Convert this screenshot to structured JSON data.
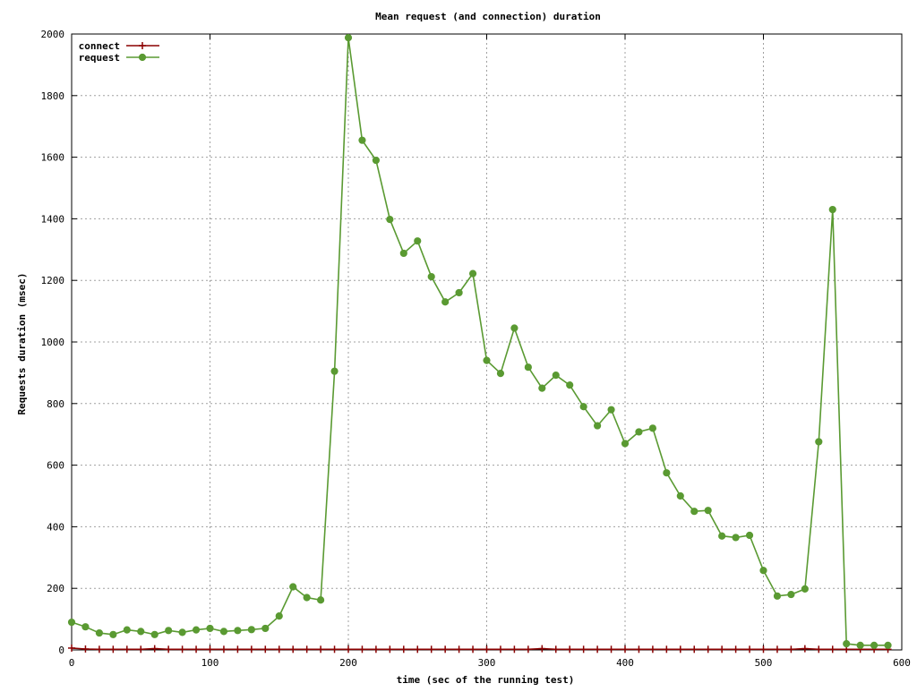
{
  "chart_data": {
    "type": "line",
    "title": "Mean request (and connection) duration",
    "xlabel": "time (sec of the running test)",
    "ylabel": "Requests duration (msec)",
    "xlim": [
      0,
      600
    ],
    "ylim": [
      0,
      2000
    ],
    "xticks": [
      0,
      100,
      200,
      300,
      400,
      500,
      600
    ],
    "yticks": [
      0,
      200,
      400,
      600,
      800,
      1000,
      1200,
      1400,
      1600,
      1800,
      2000
    ],
    "grid": true,
    "legend_position": "top-left",
    "series": [
      {
        "name": "connect",
        "color": "#8b0000",
        "marker": "plus",
        "x": [
          0,
          10,
          20,
          30,
          40,
          50,
          60,
          70,
          80,
          90,
          100,
          110,
          120,
          130,
          140,
          150,
          160,
          170,
          180,
          190,
          200,
          210,
          220,
          230,
          240,
          250,
          260,
          270,
          280,
          290,
          300,
          310,
          320,
          330,
          340,
          350,
          360,
          370,
          380,
          390,
          400,
          410,
          420,
          430,
          440,
          450,
          460,
          470,
          480,
          490,
          500,
          510,
          520,
          530,
          540,
          550,
          560,
          570,
          580,
          590
        ],
        "y": [
          6,
          3,
          2,
          2,
          2,
          2,
          4,
          2,
          2,
          2,
          2,
          2,
          2,
          2,
          2,
          2,
          2,
          2,
          2,
          2,
          2,
          2,
          2,
          2,
          2,
          2,
          2,
          2,
          2,
          2,
          2,
          2,
          2,
          2,
          4,
          2,
          2,
          2,
          2,
          2,
          2,
          2,
          2,
          2,
          2,
          2,
          2,
          2,
          2,
          2,
          2,
          2,
          2,
          4,
          2,
          2,
          2,
          2,
          2,
          2
        ]
      },
      {
        "name": "request",
        "color": "#5a9a32",
        "marker": "circle",
        "x": [
          0,
          10,
          20,
          30,
          40,
          50,
          60,
          70,
          80,
          90,
          100,
          110,
          120,
          130,
          140,
          150,
          160,
          170,
          180,
          190,
          200,
          210,
          220,
          230,
          240,
          250,
          260,
          270,
          280,
          290,
          300,
          310,
          320,
          330,
          340,
          350,
          360,
          370,
          380,
          390,
          400,
          410,
          420,
          430,
          440,
          450,
          460,
          470,
          480,
          490,
          500,
          510,
          520,
          530,
          540,
          550,
          560,
          570,
          580,
          590
        ],
        "y": [
          90,
          75,
          55,
          50,
          65,
          60,
          50,
          63,
          57,
          65,
          70,
          60,
          63,
          66,
          70,
          110,
          205,
          170,
          162,
          905,
          1988,
          1655,
          1590,
          1398,
          1288,
          1328,
          1212,
          1130,
          1160,
          1222,
          940,
          898,
          1045,
          918,
          850,
          892,
          860,
          790,
          728,
          780,
          670,
          708,
          720,
          575,
          500,
          450,
          453,
          370,
          365,
          372,
          258,
          175,
          180,
          198,
          676,
          1430,
          20,
          15,
          15,
          15
        ]
      }
    ]
  }
}
